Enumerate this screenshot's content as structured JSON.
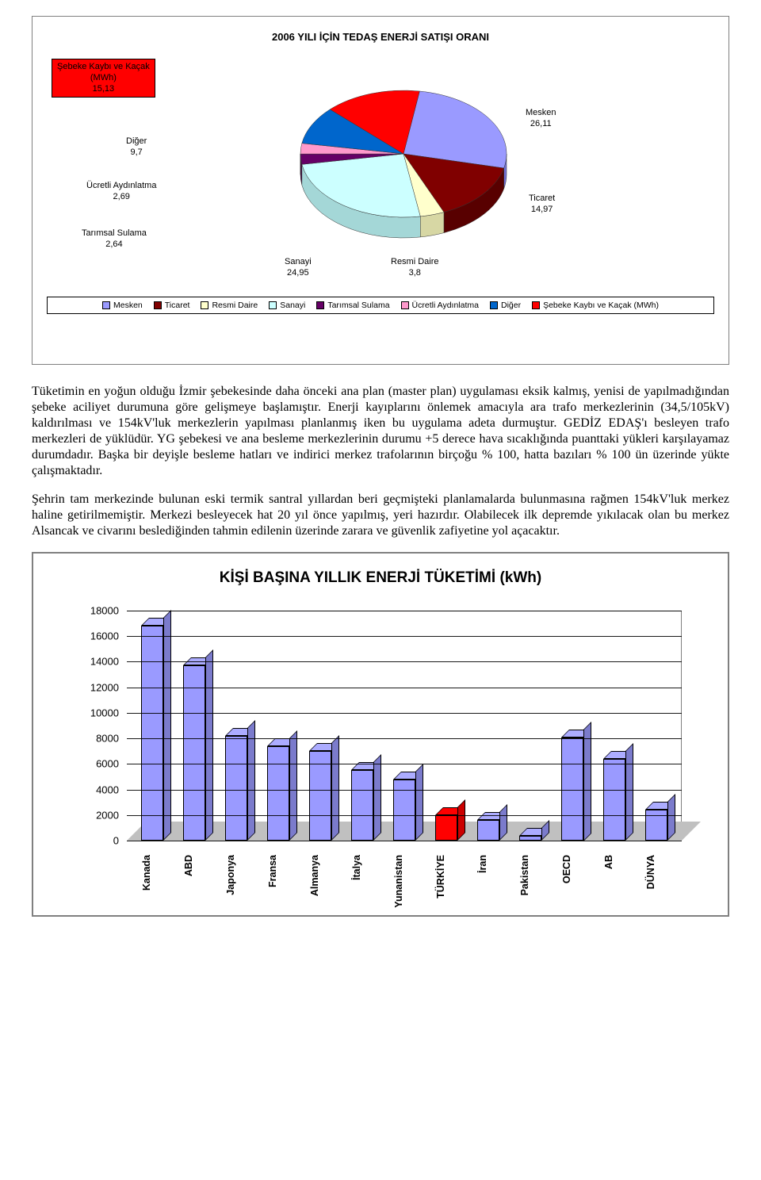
{
  "pie": {
    "title": "2006 YILI İÇİN TEDAŞ ENERJİ SATIŞI ORANI",
    "title_fontsize": 13,
    "slices": [
      {
        "label": "Mesken",
        "value": 26.11,
        "color": "#9a9aff"
      },
      {
        "label": "Ticaret",
        "value": 14.97,
        "color": "#800000"
      },
      {
        "label": "Resmi Daire",
        "value": 3.8,
        "color": "#ffffcc"
      },
      {
        "label": "Sanayi",
        "value": 24.95,
        "color": "#ccffff"
      },
      {
        "label": "Tarımsal Sulama",
        "value": 2.64,
        "color": "#660066"
      },
      {
        "label": "Ücretli Aydınlatma",
        "value": 2.69,
        "color": "#ff99cc"
      },
      {
        "label": "Diğer",
        "value": 9.7,
        "color": "#0066cc"
      },
      {
        "label": "Şebeke Kaybı ve Kaçak (MWh)",
        "value": 15.13,
        "color": "#ff0000"
      }
    ],
    "callouts": {
      "sebeke": {
        "text1": "Şebeke Kaybı ve Kaçak",
        "text2": "(MWh)",
        "value": "15,13",
        "highlight_bg": "#ff0000"
      },
      "diger": {
        "text": "Diğer",
        "value": "9,7"
      },
      "ucretli": {
        "text": "Ücretli Aydınlatma",
        "value": "2,69"
      },
      "tarimsal": {
        "text": "Tarımsal Sulama",
        "value": "2,64"
      },
      "sanayi": {
        "text": "Sanayi",
        "value": "24,95"
      },
      "resmi": {
        "text": "Resmi Daire",
        "value": "3,8"
      },
      "ticaret": {
        "text": "Ticaret",
        "value": "14,97"
      },
      "mesken": {
        "text": "Mesken",
        "value": "26,11"
      }
    },
    "background_color": "#ffffff",
    "depth_color": "#666666"
  },
  "paragraph1": "Tüketimin en yoğun olduğu İzmir şebekesinde daha önceki ana plan (master plan) uygulaması eksik kalmış, yenisi de yapılmadığından şebeke aciliyet durumuna göre gelişmeye başlamıştır. Enerji kayıplarını önlemek amacıyla ara trafo merkezlerinin  (34,5/105kV) kaldırılması ve 154kV'luk merkezlerin yapılması planlanmış iken bu uygulama adeta durmuştur. GEDİZ EDAŞ'ı besleyen trafo merkezleri de yüklüdür. YG şebekesi ve ana besleme merkezlerinin durumu +5 derece hava sıcaklığında puanttaki yükleri karşılayamaz durumdadır. Başka bir deyişle besleme hatları ve indirici merkez trafolarının birçoğu % 100, hatta bazıları % 100 ün üzerinde yükte çalışmaktadır.",
  "paragraph2": "Şehrin tam merkezinde bulunan eski termik santral yıllardan beri geçmişteki planlamalarda bulunmasına rağmen 154kV'luk merkez haline getirilmemiştir. Merkezi besleyecek hat 20 yıl önce yapılmış, yeri hazırdır. Olabilecek ilk depremde yıkılacak olan bu merkez Alsancak ve civarını beslediğinden tahmin edilenin üzerinde zarara ve güvenlik zafiyetine yol açacaktır.",
  "bar": {
    "title": "KİŞİ BAŞINA YILLIK ENERJİ TÜKETİMİ (kWh)",
    "title_fontsize": 19,
    "ylim": [
      0,
      18000
    ],
    "ytick_step": 2000,
    "bar_color": "#9a9aff",
    "highlight_color": "#ff0000",
    "grid_color": "#000000",
    "floor_color": "#c0c0c0",
    "categories": [
      {
        "label": "Kanada",
        "value": 16800
      },
      {
        "label": "ABD",
        "value": 13700
      },
      {
        "label": "Japonya",
        "value": 8200
      },
      {
        "label": "Fransa",
        "value": 7400
      },
      {
        "label": "Almanya",
        "value": 7000
      },
      {
        "label": "İtalya",
        "value": 5500
      },
      {
        "label": "Yunanistan",
        "value": 4800
      },
      {
        "label": "TÜRKİYE",
        "value": 2000,
        "highlight": true
      },
      {
        "label": "İran",
        "value": 1600
      },
      {
        "label": "Pakistan",
        "value": 400
      },
      {
        "label": "OECD",
        "value": 8100
      },
      {
        "label": "AB",
        "value": 6400
      },
      {
        "label": "DÜNYA",
        "value": 2400
      }
    ]
  }
}
